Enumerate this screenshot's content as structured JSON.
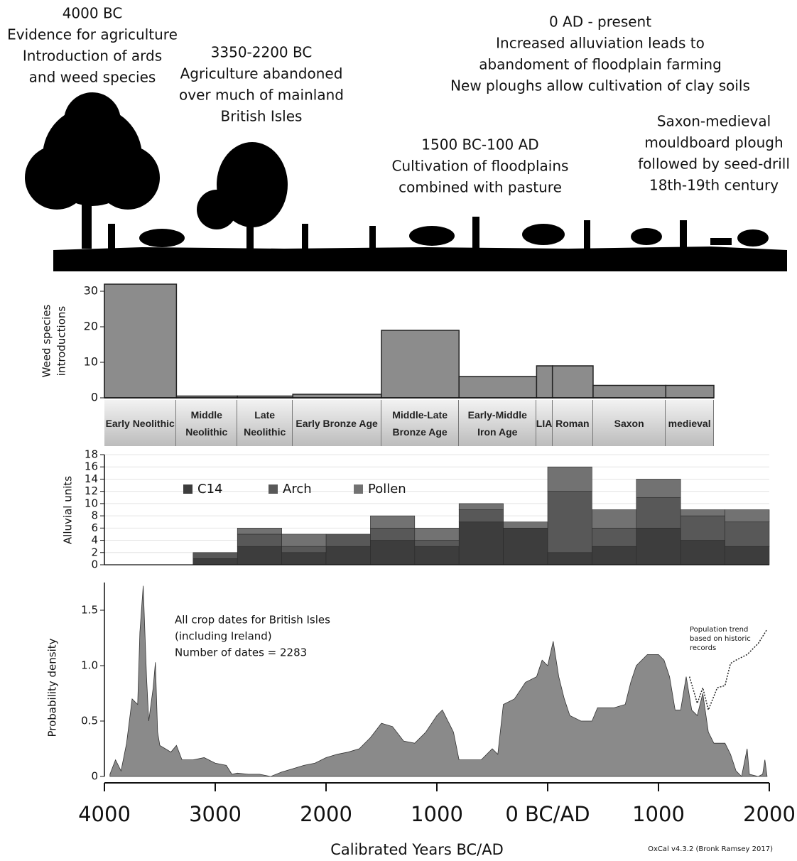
{
  "header_annotations": [
    {
      "lines": [
        "4000 BC",
        "Evidence for agriculture",
        "Introduction of ards",
        "and weed species"
      ]
    },
    {
      "lines": [
        "3350-2200 BC",
        "Agriculture abandoned",
        "over much of mainland",
        "British Isles"
      ]
    },
    {
      "lines": [
        "0 AD - present",
        "Increased alluviation leads to",
        "abandoment of floodplain farming",
        "New ploughs allow cultivation of clay soils"
      ]
    },
    {
      "lines": [
        "1500 BC-100 AD",
        "Cultivation of floodplains",
        "combined with pasture"
      ]
    },
    {
      "lines": [
        "Saxon-medieval",
        "mouldboard plough",
        "followed by seed-drill",
        "18th-19th century"
      ]
    }
  ],
  "chart_data": [
    {
      "type": "histogram",
      "ylabel": [
        "Weed species",
        "introductions"
      ],
      "bins": [
        -4000,
        -3350,
        -2800,
        -2300,
        -1500,
        -800,
        -100,
        43,
        410,
        1066,
        1500
      ],
      "categories": [
        "Early Neolithic",
        "Middle Neolithic",
        "Late Neolithic",
        "Early Bronze Age",
        "Middle-Late Bronze Age",
        "Early-Middle Iron Age",
        "LIA",
        "Roman",
        "Saxon",
        "medieval"
      ],
      "values": [
        32,
        0.5,
        0.5,
        1,
        19,
        6,
        9,
        9,
        3.5,
        3.5
      ],
      "color": "#8c8c8c",
      "xlim": [
        -4000,
        2000
      ],
      "ylim": [
        0,
        32
      ],
      "yticks": [
        0,
        10,
        20,
        30
      ]
    },
    {
      "type": "stacked_histogram",
      "ylabel": "Alluvial units",
      "bins": [
        -3200,
        -2800,
        -2400,
        -2000,
        -1600,
        -1200,
        -800,
        -400,
        0,
        400,
        800,
        1200,
        1600,
        2000
      ],
      "series": [
        {
          "name": "C14",
          "color": "#3d3d3d",
          "values": [
            1,
            3,
            2,
            3,
            4,
            3,
            7,
            6,
            2,
            3,
            6,
            4,
            3
          ]
        },
        {
          "name": "Arch",
          "color": "#585858",
          "values": [
            1,
            2,
            1,
            2,
            2,
            1,
            2,
            0,
            10,
            3,
            5,
            4,
            4
          ]
        },
        {
          "name": "Pollen",
          "color": "#727272",
          "values": [
            0,
            1,
            2,
            0,
            2,
            2,
            1,
            1,
            4,
            3,
            3,
            1,
            2
          ]
        }
      ],
      "xlim": [
        -4000,
        2000
      ],
      "ylim": [
        0,
        18
      ],
      "yticks": [
        0,
        2,
        4,
        6,
        8,
        10,
        12,
        14,
        16,
        18
      ],
      "grid": true
    },
    {
      "type": "area",
      "ylabel": "Probability density",
      "xlabel": "Calibrated Years BC/AD",
      "annotations": [
        {
          "lines": [
            "All crop dates for British Isles",
            "(including Ireland)",
            "Number of dates = 2283"
          ]
        },
        {
          "lines": [
            "Population trend",
            "based on historic",
            "records"
          ]
        }
      ],
      "credit": "OxCal v4.3.2 (Bronk Ramsey 2017)",
      "series": [
        {
          "style": "area",
          "color": "#8a8a8a",
          "x": [
            -3950,
            -3900,
            -3850,
            -3800,
            -3750,
            -3700,
            -3680,
            -3650,
            -3620,
            -3600,
            -3560,
            -3540,
            -3520,
            -3500,
            -3450,
            -3400,
            -3350,
            -3300,
            -3200,
            -3100,
            -3000,
            -2900,
            -2850,
            -2800,
            -2700,
            -2600,
            -2500,
            -2400,
            -2300,
            -2200,
            -2100,
            -2000,
            -1900,
            -1800,
            -1700,
            -1600,
            -1500,
            -1400,
            -1300,
            -1200,
            -1100,
            -1000,
            -950,
            -900,
            -850,
            -800,
            -700,
            -600,
            -500,
            -450,
            -400,
            -300,
            -200,
            -100,
            -50,
            0,
            50,
            100,
            150,
            200,
            300,
            400,
            450,
            500,
            600,
            700,
            750,
            800,
            850,
            900,
            1000,
            1050,
            1100,
            1150,
            1200,
            1250,
            1300,
            1350,
            1400,
            1450,
            1500,
            1550,
            1600,
            1650,
            1700,
            1750,
            1800,
            1820,
            1900,
            1940,
            1960,
            1980
          ],
          "values": [
            0.02,
            0.15,
            0.05,
            0.3,
            0.7,
            0.65,
            1.3,
            1.72,
            0.9,
            0.5,
            0.8,
            1.03,
            0.4,
            0.28,
            0.25,
            0.22,
            0.28,
            0.15,
            0.15,
            0.17,
            0.12,
            0.1,
            0.02,
            0.03,
            0.02,
            0.02,
            0,
            0.04,
            0.07,
            0.1,
            0.12,
            0.17,
            0.2,
            0.22,
            0.25,
            0.35,
            0.48,
            0.45,
            0.32,
            0.3,
            0.4,
            0.55,
            0.6,
            0.5,
            0.4,
            0.15,
            0.15,
            0.15,
            0.25,
            0.2,
            0.65,
            0.7,
            0.85,
            0.9,
            1.05,
            1,
            1.22,
            0.9,
            0.7,
            0.55,
            0.5,
            0.5,
            0.62,
            0.62,
            0.62,
            0.65,
            0.85,
            1,
            1.05,
            1.1,
            1.1,
            1.05,
            0.9,
            0.6,
            0.6,
            0.9,
            0.6,
            0.55,
            0.75,
            0.4,
            0.3,
            0.3,
            0.3,
            0.2,
            0.05,
            0,
            0.25,
            0.02,
            0,
            0.02,
            0.15,
            0
          ]
        },
        {
          "style": "dotted",
          "color": "#222222",
          "x": [
            1280,
            1350,
            1400,
            1450,
            1530,
            1600,
            1650,
            1700,
            1800,
            1900,
            1975
          ],
          "values": [
            0.9,
            0.66,
            0.8,
            0.6,
            0.8,
            0.82,
            1.02,
            1.05,
            1.1,
            1.2,
            1.32
          ]
        }
      ],
      "xlim": [
        -4000,
        2000
      ],
      "xticks": [
        {
          "value": -4000,
          "label": "4000"
        },
        {
          "value": -3000,
          "label": "3000"
        },
        {
          "value": -2000,
          "label": "2000"
        },
        {
          "value": -1000,
          "label": "1000"
        },
        {
          "value": 0,
          "label": "0 BC/AD"
        },
        1000,
        2000
      ],
      "ylim": [
        0,
        1.75
      ],
      "yticks": [
        0,
        0.5,
        {
          "value": 1,
          "label": "1.0"
        },
        1.5
      ]
    }
  ]
}
